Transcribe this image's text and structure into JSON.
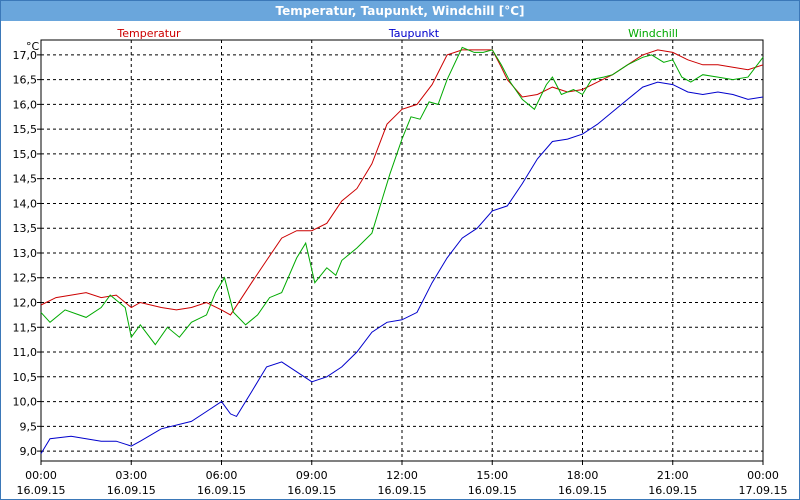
{
  "window": {
    "title": "Temperatur, Taupunkt, Windchill [°C]"
  },
  "chart_data": {
    "type": "line",
    "title": "Temperatur, Taupunkt, Windchill [°C]",
    "ylabel": "°C",
    "ylim": [
      8.8,
      17.3
    ],
    "xlim": [
      0,
      24
    ],
    "grid": true,
    "legend_placement": "top",
    "y_ticks": [
      "9,0",
      "9,5",
      "10,0",
      "10,5",
      "11,0",
      "11,5",
      "12,0",
      "12,5",
      "13,0",
      "13,5",
      "14,0",
      "14,5",
      "15,0",
      "15,5",
      "16,0",
      "16,5",
      "17,0"
    ],
    "y_tick_values": [
      9.0,
      9.5,
      10.0,
      10.5,
      11.0,
      11.5,
      12.0,
      12.5,
      13.0,
      13.5,
      14.0,
      14.5,
      15.0,
      15.5,
      16.0,
      16.5,
      17.0
    ],
    "x_ticks": [
      {
        "time": "00:00",
        "date": "16.09.15",
        "x": 0
      },
      {
        "time": "03:00",
        "date": "16.09.15",
        "x": 3
      },
      {
        "time": "06:00",
        "date": "16.09.15",
        "x": 6
      },
      {
        "time": "09:00",
        "date": "16.09.15",
        "x": 9
      },
      {
        "time": "12:00",
        "date": "16.09.15",
        "x": 12
      },
      {
        "time": "15:00",
        "date": "16.09.15",
        "x": 15
      },
      {
        "time": "18:00",
        "date": "16.09.15",
        "x": 18
      },
      {
        "time": "21:00",
        "date": "16.09.15",
        "x": 21
      },
      {
        "time": "00:00",
        "date": "17.09.15",
        "x": 24
      }
    ],
    "series": [
      {
        "name": "Temperatur",
        "color": "#cc0000",
        "points": [
          [
            0,
            11.95
          ],
          [
            0.5,
            12.1
          ],
          [
            1,
            12.15
          ],
          [
            1.5,
            12.2
          ],
          [
            2,
            12.1
          ],
          [
            2.5,
            12.15
          ],
          [
            3,
            11.9
          ],
          [
            3.3,
            12.0
          ],
          [
            4,
            11.9
          ],
          [
            4.5,
            11.85
          ],
          [
            5,
            11.9
          ],
          [
            5.5,
            12.0
          ],
          [
            6,
            11.85
          ],
          [
            6.3,
            11.75
          ],
          [
            7,
            12.4
          ],
          [
            7.5,
            12.85
          ],
          [
            8,
            13.3
          ],
          [
            8.5,
            13.45
          ],
          [
            9,
            13.45
          ],
          [
            9.5,
            13.6
          ],
          [
            10,
            14.05
          ],
          [
            10.5,
            14.3
          ],
          [
            11,
            14.8
          ],
          [
            11.5,
            15.6
          ],
          [
            12,
            15.9
          ],
          [
            12.5,
            16.0
          ],
          [
            13,
            16.4
          ],
          [
            13.5,
            17.0
          ],
          [
            14,
            17.1
          ],
          [
            14.5,
            17.1
          ],
          [
            15,
            17.1
          ],
          [
            15.3,
            16.75
          ],
          [
            15.5,
            16.5
          ],
          [
            16,
            16.15
          ],
          [
            16.5,
            16.2
          ],
          [
            17,
            16.35
          ],
          [
            17.5,
            16.25
          ],
          [
            18,
            16.3
          ],
          [
            18.5,
            16.45
          ],
          [
            19,
            16.6
          ],
          [
            19.5,
            16.8
          ],
          [
            20,
            17.0
          ],
          [
            20.5,
            17.1
          ],
          [
            21,
            17.05
          ],
          [
            21.5,
            16.9
          ],
          [
            22,
            16.8
          ],
          [
            22.5,
            16.8
          ],
          [
            23,
            16.75
          ],
          [
            23.5,
            16.7
          ],
          [
            24,
            16.8
          ]
        ]
      },
      {
        "name": "Taupunkt",
        "color": "#0000cc",
        "points": [
          [
            0,
            8.95
          ],
          [
            0.3,
            9.25
          ],
          [
            1,
            9.3
          ],
          [
            1.5,
            9.25
          ],
          [
            2,
            9.2
          ],
          [
            2.5,
            9.2
          ],
          [
            3,
            9.1
          ],
          [
            3.3,
            9.2
          ],
          [
            4,
            9.45
          ],
          [
            5,
            9.6
          ],
          [
            5.5,
            9.8
          ],
          [
            6,
            10.0
          ],
          [
            6.3,
            9.75
          ],
          [
            6.5,
            9.7
          ],
          [
            7,
            10.2
          ],
          [
            7.5,
            10.7
          ],
          [
            8,
            10.8
          ],
          [
            8.5,
            10.6
          ],
          [
            9,
            10.4
          ],
          [
            9.5,
            10.5
          ],
          [
            10,
            10.7
          ],
          [
            10.5,
            11.0
          ],
          [
            11,
            11.4
          ],
          [
            11.5,
            11.6
          ],
          [
            12,
            11.65
          ],
          [
            12.5,
            11.8
          ],
          [
            13,
            12.4
          ],
          [
            13.5,
            12.9
          ],
          [
            14,
            13.3
          ],
          [
            14.5,
            13.5
          ],
          [
            15,
            13.85
          ],
          [
            15.5,
            13.95
          ],
          [
            16,
            14.4
          ],
          [
            16.5,
            14.9
          ],
          [
            17,
            15.25
          ],
          [
            17.5,
            15.3
          ],
          [
            18,
            15.4
          ],
          [
            18.5,
            15.6
          ],
          [
            19,
            15.85
          ],
          [
            19.5,
            16.1
          ],
          [
            20,
            16.35
          ],
          [
            20.5,
            16.45
          ],
          [
            21,
            16.4
          ],
          [
            21.5,
            16.25
          ],
          [
            22,
            16.2
          ],
          [
            22.5,
            16.25
          ],
          [
            23,
            16.2
          ],
          [
            23.5,
            16.1
          ],
          [
            24,
            16.15
          ]
        ]
      },
      {
        "name": "Windchill",
        "color": "#00aa00",
        "points": [
          [
            0,
            11.8
          ],
          [
            0.3,
            11.6
          ],
          [
            0.8,
            11.85
          ],
          [
            1.5,
            11.7
          ],
          [
            2,
            11.9
          ],
          [
            2.3,
            12.15
          ],
          [
            2.8,
            11.9
          ],
          [
            3,
            11.3
          ],
          [
            3.3,
            11.55
          ],
          [
            3.8,
            11.15
          ],
          [
            4.2,
            11.5
          ],
          [
            4.6,
            11.3
          ],
          [
            5,
            11.6
          ],
          [
            5.5,
            11.75
          ],
          [
            5.8,
            12.2
          ],
          [
            6.1,
            12.5
          ],
          [
            6.4,
            11.8
          ],
          [
            6.8,
            11.55
          ],
          [
            7.2,
            11.75
          ],
          [
            7.6,
            12.1
          ],
          [
            8,
            12.2
          ],
          [
            8.5,
            12.9
          ],
          [
            8.8,
            13.2
          ],
          [
            9.1,
            12.4
          ],
          [
            9.5,
            12.7
          ],
          [
            9.8,
            12.55
          ],
          [
            10,
            12.85
          ],
          [
            10.5,
            13.1
          ],
          [
            11,
            13.4
          ],
          [
            11.3,
            14.0
          ],
          [
            11.6,
            14.6
          ],
          [
            12,
            15.3
          ],
          [
            12.3,
            15.75
          ],
          [
            12.6,
            15.7
          ],
          [
            12.9,
            16.05
          ],
          [
            13.2,
            16.0
          ],
          [
            13.5,
            16.5
          ],
          [
            14,
            17.15
          ],
          [
            14.4,
            17.05
          ],
          [
            14.7,
            17.05
          ],
          [
            15,
            17.1
          ],
          [
            15.3,
            16.8
          ],
          [
            15.6,
            16.45
          ],
          [
            16,
            16.1
          ],
          [
            16.4,
            15.9
          ],
          [
            16.8,
            16.4
          ],
          [
            17,
            16.55
          ],
          [
            17.3,
            16.2
          ],
          [
            17.7,
            16.3
          ],
          [
            18,
            16.2
          ],
          [
            18.3,
            16.5
          ],
          [
            18.7,
            16.55
          ],
          [
            19,
            16.6
          ],
          [
            19.5,
            16.8
          ],
          [
            20,
            16.95
          ],
          [
            20.3,
            17.0
          ],
          [
            20.7,
            16.85
          ],
          [
            21,
            16.9
          ],
          [
            21.3,
            16.55
          ],
          [
            21.6,
            16.45
          ],
          [
            22,
            16.6
          ],
          [
            22.5,
            16.55
          ],
          [
            23,
            16.5
          ],
          [
            23.5,
            16.55
          ],
          [
            24,
            16.95
          ]
        ]
      }
    ]
  }
}
